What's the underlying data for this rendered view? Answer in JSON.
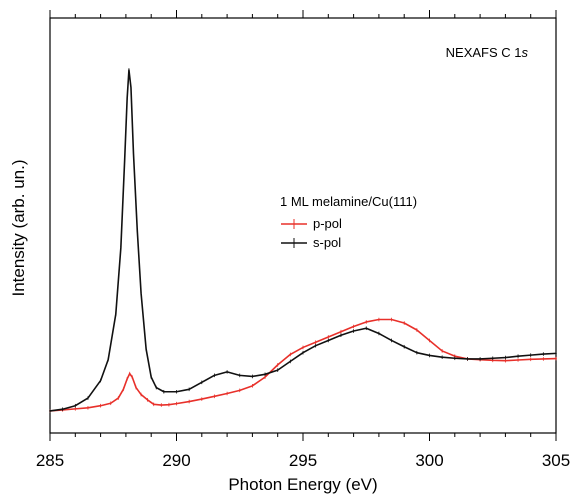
{
  "chart_data": {
    "type": "line",
    "annotation": {
      "main": "NEXAFS C 1",
      "italic": "s"
    },
    "xlabel": "Photon Energy (eV)",
    "ylabel": "Intensity (arb. un.)",
    "xlim": [
      285,
      305
    ],
    "ylim": [
      0,
      1
    ],
    "x_ticks": [
      285,
      290,
      295,
      300,
      305
    ],
    "x_tick_labels": [
      "285",
      "290",
      "295",
      "300",
      "305"
    ],
    "y_tick_labels_shown": false,
    "grid": false,
    "legend": {
      "title": "1 ML melamine/Cu(111)",
      "placement": "center-right"
    },
    "series": [
      {
        "name": "p-pol",
        "color": "#e8302a",
        "x": [
          285.0,
          285.5,
          286.0,
          286.5,
          287.0,
          287.4,
          287.7,
          287.9,
          288.05,
          288.15,
          288.25,
          288.4,
          288.6,
          288.85,
          289.1,
          289.4,
          289.7,
          290.0,
          290.5,
          291.0,
          291.5,
          292.0,
          292.5,
          293.0,
          293.5,
          294.0,
          294.5,
          295.0,
          295.5,
          296.0,
          296.5,
          297.0,
          297.5,
          298.0,
          298.5,
          299.0,
          299.5,
          300.0,
          300.5,
          301.0,
          301.5,
          302.0,
          302.5,
          303.0,
          303.5,
          304.0,
          304.5,
          305.0
        ],
        "y": [
          0.003,
          0.006,
          0.009,
          0.012,
          0.018,
          0.025,
          0.04,
          0.065,
          0.095,
          0.11,
          0.1,
          0.07,
          0.05,
          0.035,
          0.022,
          0.02,
          0.021,
          0.024,
          0.03,
          0.037,
          0.045,
          0.053,
          0.062,
          0.075,
          0.1,
          0.135,
          0.165,
          0.185,
          0.2,
          0.215,
          0.23,
          0.245,
          0.258,
          0.265,
          0.265,
          0.255,
          0.235,
          0.205,
          0.175,
          0.16,
          0.152,
          0.15,
          0.148,
          0.147,
          0.149,
          0.151,
          0.152,
          0.153
        ]
      },
      {
        "name": "s-pol",
        "color": "#111111",
        "x": [
          285.0,
          285.5,
          286.0,
          286.5,
          287.0,
          287.3,
          287.6,
          287.8,
          287.95,
          288.05,
          288.12,
          288.2,
          288.3,
          288.45,
          288.6,
          288.8,
          289.0,
          289.2,
          289.5,
          290.0,
          290.5,
          291.0,
          291.5,
          292.0,
          292.5,
          293.0,
          293.5,
          294.0,
          294.5,
          295.0,
          295.5,
          296.0,
          296.5,
          297.0,
          297.5,
          298.0,
          298.5,
          299.0,
          299.5,
          300.0,
          300.5,
          301.0,
          301.5,
          302.0,
          302.5,
          303.0,
          303.5,
          304.0,
          304.5,
          305.0
        ],
        "y": [
          0.003,
          0.008,
          0.018,
          0.04,
          0.09,
          0.15,
          0.28,
          0.47,
          0.72,
          0.9,
          0.98,
          0.93,
          0.74,
          0.52,
          0.34,
          0.18,
          0.1,
          0.07,
          0.058,
          0.058,
          0.065,
          0.085,
          0.105,
          0.115,
          0.105,
          0.102,
          0.108,
          0.12,
          0.145,
          0.17,
          0.19,
          0.205,
          0.22,
          0.232,
          0.24,
          0.225,
          0.205,
          0.187,
          0.17,
          0.162,
          0.157,
          0.154,
          0.152,
          0.152,
          0.154,
          0.156,
          0.16,
          0.163,
          0.166,
          0.168
        ]
      }
    ]
  }
}
